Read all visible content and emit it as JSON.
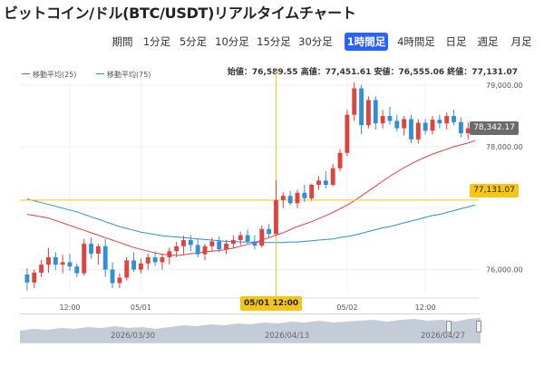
{
  "page": {
    "title": "ビットコイン/ドル(BTC/USDT)リアルタイムチャート"
  },
  "periods": [
    {
      "label": "期間",
      "active": false
    },
    {
      "label": "1分足",
      "active": false
    },
    {
      "label": "5分足",
      "active": false
    },
    {
      "label": "10分足",
      "active": false
    },
    {
      "label": "15分足",
      "active": false
    },
    {
      "label": "30分足",
      "active": false
    },
    {
      "label": "1時間足",
      "active": true
    },
    {
      "label": "4時間足",
      "active": false
    },
    {
      "label": "日足",
      "active": false
    },
    {
      "label": "週足",
      "active": false
    },
    {
      "label": "月足",
      "active": false
    }
  ],
  "legend": [
    {
      "label": "移動平均(25)",
      "color": "#e0423e"
    },
    {
      "label": "移動平均(75)",
      "color": "#2f8fd8"
    }
  ],
  "ohlc_text": "始値：76,589.55 高値：77,451.61 安値：76,555.06 終値：77,131.07",
  "price_tags": {
    "last": "78,342.17",
    "hline": "77,131.07"
  },
  "time_tag": "05/01 12:00",
  "colors": {
    "up": "#e0423e",
    "down": "#2f8fd8",
    "ma25": "#e0423e",
    "ma75": "#2f8fd8",
    "crosshair": "#f5c518",
    "accent": "#2962ff"
  },
  "navigator": {
    "labels": [
      "2026/03/30",
      "2026/04/13",
      "2026/04/27"
    ]
  },
  "chart_data": {
    "type": "candlestick",
    "y_ticks": [
      "79,000.00",
      "78,000.00",
      "76,000.00"
    ],
    "x_ticks": [
      "12:00",
      "05/01",
      "05/02",
      "12:00"
    ],
    "ylim": [
      75640,
      79120
    ],
    "hline_value": 77131.07,
    "last_value": 78342.17,
    "candles": [
      [
        75920,
        76020,
        75660,
        75790
      ],
      [
        75790,
        76000,
        75700,
        75950
      ],
      [
        75950,
        76160,
        75880,
        76080
      ],
      [
        76080,
        76350,
        75950,
        76200
      ],
      [
        76200,
        76280,
        76000,
        76080
      ],
      [
        76080,
        76240,
        75940,
        76120
      ],
      [
        76120,
        76260,
        75980,
        76050
      ],
      [
        76050,
        76100,
        75880,
        75940
      ],
      [
        75940,
        76500,
        75900,
        76420
      ],
      [
        76420,
        76520,
        76180,
        76260
      ],
      [
        76260,
        76420,
        76080,
        76380
      ],
      [
        76380,
        76500,
        75880,
        76000
      ],
      [
        76000,
        76120,
        75700,
        75780
      ],
      [
        75780,
        75940,
        75700,
        75870
      ],
      [
        75870,
        76200,
        75820,
        76150
      ],
      [
        76150,
        76280,
        75960,
        76000
      ],
      [
        76000,
        76180,
        75940,
        76100
      ],
      [
        76100,
        76260,
        76000,
        76200
      ],
      [
        76200,
        76300,
        76060,
        76120
      ],
      [
        76120,
        76250,
        76000,
        76200
      ],
      [
        76200,
        76360,
        76080,
        76300
      ],
      [
        76300,
        76450,
        76200,
        76380
      ],
      [
        76380,
        76550,
        76250,
        76480
      ],
      [
        76480,
        76560,
        76300,
        76400
      ],
      [
        76400,
        76500,
        76200,
        76250
      ],
      [
        76250,
        76420,
        76150,
        76380
      ],
      [
        76380,
        76520,
        76300,
        76460
      ],
      [
        76460,
        76540,
        76280,
        76330
      ],
      [
        76330,
        76480,
        76250,
        76420
      ],
      [
        76420,
        76560,
        76350,
        76480
      ],
      [
        76480,
        76620,
        76400,
        76560
      ],
      [
        76560,
        76650,
        76420,
        76460
      ],
      [
        76460,
        76560,
        76330,
        76390
      ],
      [
        76390,
        76720,
        76360,
        76660
      ],
      [
        76660,
        76740,
        76520,
        76580
      ],
      [
        76580,
        77451.61,
        76555.06,
        77131.07
      ],
      [
        77131,
        77260,
        77000,
        77200
      ],
      [
        77200,
        77280,
        77050,
        77080
      ],
      [
        77080,
        77300,
        77000,
        77250
      ],
      [
        77250,
        77380,
        77100,
        77160
      ],
      [
        77160,
        77400,
        77120,
        77380
      ],
      [
        77380,
        77520,
        77300,
        77450
      ],
      [
        77450,
        77600,
        77320,
        77380
      ],
      [
        77380,
        77720,
        77350,
        77650
      ],
      [
        77650,
        77960,
        77600,
        77900
      ],
      [
        77900,
        78600,
        77850,
        78520
      ],
      [
        78520,
        79050,
        78420,
        78950
      ],
      [
        78950,
        79000,
        78200,
        78350
      ],
      [
        78350,
        78820,
        78300,
        78760
      ],
      [
        78760,
        78820,
        78280,
        78380
      ],
      [
        78380,
        78600,
        78300,
        78500
      ],
      [
        78500,
        78650,
        78360,
        78420
      ],
      [
        78420,
        78520,
        78250,
        78300
      ],
      [
        78300,
        78500,
        78180,
        78450
      ],
      [
        78450,
        78520,
        78060,
        78120
      ],
      [
        78120,
        78450,
        78050,
        78390
      ],
      [
        78390,
        78450,
        78200,
        78260
      ],
      [
        78260,
        78500,
        78200,
        78440
      ],
      [
        78440,
        78520,
        78300,
        78380
      ],
      [
        78380,
        78560,
        78280,
        78500
      ],
      [
        78500,
        78600,
        78350,
        78400
      ],
      [
        78400,
        78480,
        78150,
        78220
      ],
      [
        78220,
        78400,
        78120,
        78300
      ],
      [
        78300,
        78400,
        78220,
        78342.17
      ]
    ],
    "ma25": [
      76900,
      76880,
      76860,
      76840,
      76800,
      76760,
      76720,
      76680,
      76640,
      76600,
      76560,
      76520,
      76480,
      76440,
      76400,
      76360,
      76330,
      76300,
      76270,
      76250,
      76240,
      76230,
      76240,
      76260,
      76270,
      76290,
      76300,
      76310,
      76330,
      76350,
      76380,
      76410,
      76440,
      76480,
      76520,
      76560,
      76600,
      76650,
      76700,
      76740,
      76780,
      76830,
      76880,
      76930,
      76990,
      77050,
      77120,
      77200,
      77280,
      77360,
      77440,
      77520,
      77590,
      77660,
      77720,
      77780,
      77830,
      77880,
      77920,
      77960,
      78000,
      78030,
      78060,
      78100
    ],
    "ma75": [
      77150,
      77120,
      77090,
      77060,
      77030,
      77000,
      76970,
      76940,
      76900,
      76860,
      76820,
      76780,
      76740,
      76700,
      76670,
      76640,
      76610,
      76590,
      76570,
      76550,
      76540,
      76530,
      76520,
      76510,
      76500,
      76490,
      76480,
      76470,
      76460,
      76460,
      76450,
      76450,
      76440,
      76440,
      76440,
      76440,
      76440,
      76450,
      76450,
      76460,
      76470,
      76480,
      76490,
      76500,
      76520,
      76540,
      76560,
      76590,
      76620,
      76650,
      76680,
      76700,
      76730,
      76760,
      76790,
      76820,
      76850,
      76880,
      76900,
      76930,
      76960,
      76990,
      77020,
      77050
    ],
    "crosshair_index": 35
  }
}
